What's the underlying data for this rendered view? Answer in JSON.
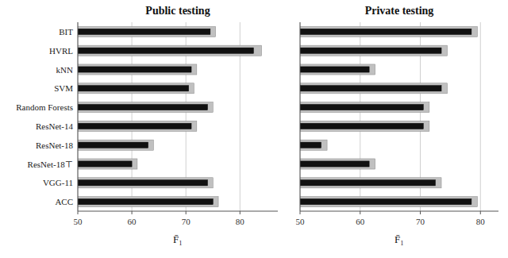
{
  "chart_data": [
    {
      "type": "bar",
      "orientation": "horizontal",
      "title": "Public testing",
      "xlabel": "F̄₁",
      "categories": [
        "BIT",
        "HVRL",
        "kNN",
        "SVM",
        "Random Forests",
        "ResNet-14",
        "ResNet-18",
        "ResNet-18⊤",
        "VGG-11",
        "ACC"
      ],
      "series": [
        {
          "color": "#c0c0c0",
          "values": [
            75.5,
            84.0,
            72.0,
            71.5,
            75.0,
            72.0,
            64.0,
            61.0,
            75.0,
            76.0
          ]
        },
        {
          "color": "#111111",
          "values": [
            74.5,
            82.5,
            71.0,
            70.5,
            74.0,
            71.0,
            63.0,
            60.0,
            74.0,
            75.0
          ]
        }
      ],
      "xlim": [
        50,
        87
      ],
      "xticks": [
        50,
        60,
        70,
        80
      ],
      "grid": true
    },
    {
      "type": "bar",
      "orientation": "horizontal",
      "title": "Private testing",
      "xlabel": "F̄₁",
      "categories": [
        null,
        null,
        null,
        null,
        null,
        null,
        null,
        null,
        null,
        null
      ],
      "series": [
        {
          "color": "#c0c0c0",
          "values": [
            79.5,
            74.5,
            62.5,
            74.5,
            71.5,
            71.5,
            54.5,
            62.5,
            73.5,
            79.5
          ]
        },
        {
          "color": "#111111",
          "values": [
            78.5,
            73.5,
            61.5,
            73.5,
            70.5,
            70.5,
            53.5,
            61.5,
            72.5,
            78.5
          ]
        }
      ],
      "xlim": [
        50,
        83
      ],
      "xticks": [
        50,
        60,
        70,
        80
      ],
      "grid": true
    }
  ]
}
